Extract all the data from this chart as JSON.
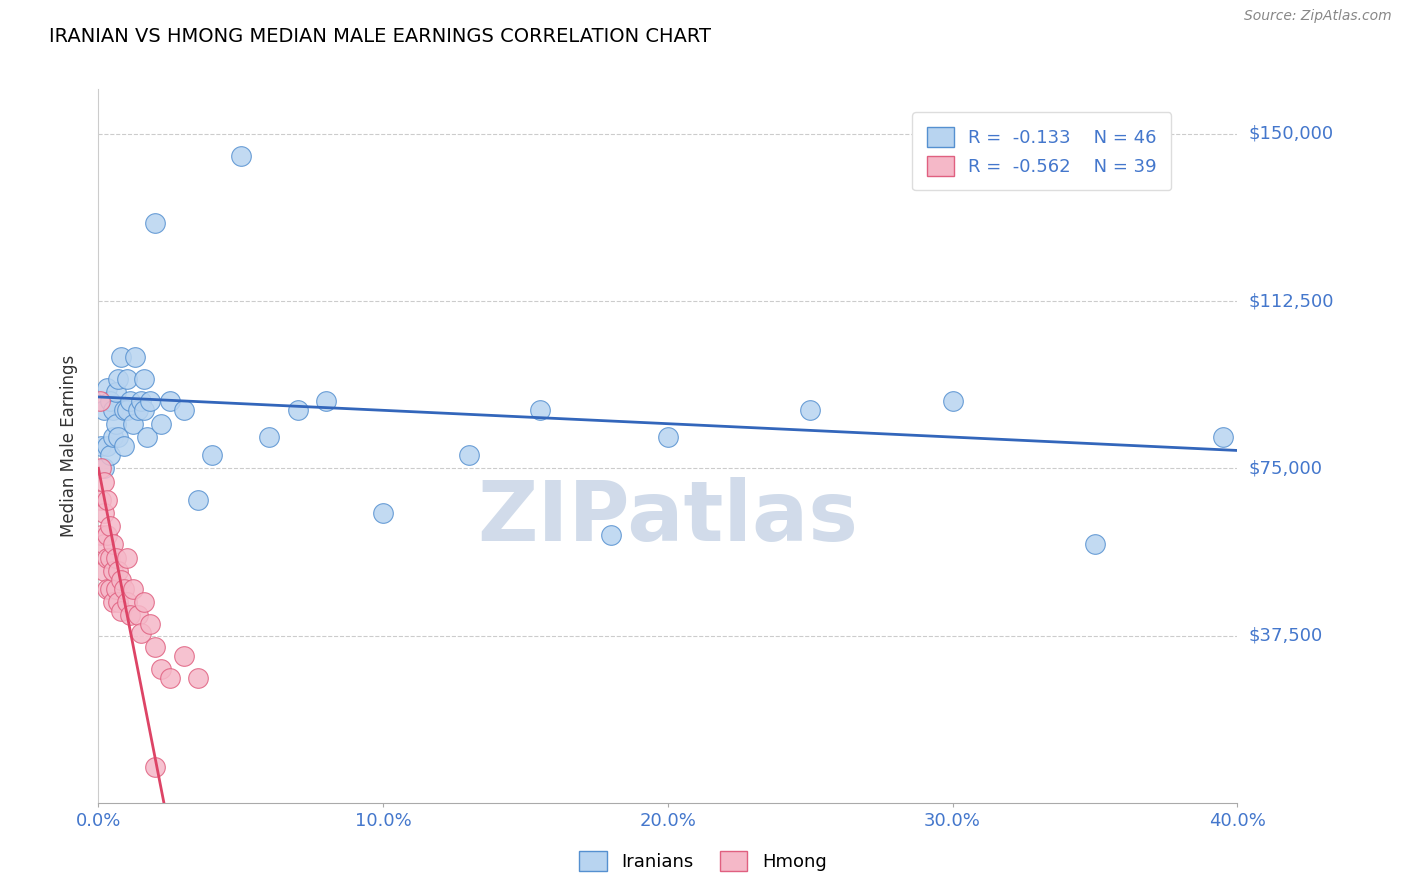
{
  "title": "IRANIAN VS HMONG MEDIAN MALE EARNINGS CORRELATION CHART",
  "source_text": "Source: ZipAtlas.com",
  "ylabel": "Median Male Earnings",
  "xlim": [
    0.0,
    0.4
  ],
  "ylim": [
    0,
    160000
  ],
  "ytick_vals": [
    37500,
    75000,
    112500,
    150000
  ],
  "ytick_labels": [
    "$37,500",
    "$75,000",
    "$112,500",
    "$150,000"
  ],
  "xticks": [
    0.0,
    0.1,
    0.2,
    0.3,
    0.4
  ],
  "xtick_labels": [
    "0.0%",
    "10.0%",
    "20.0%",
    "30.0%",
    "40.0%"
  ],
  "legend_r_iranian": "-0.133",
  "legend_n_iranian": "46",
  "legend_r_hmong": "-0.562",
  "legend_n_hmong": "39",
  "iranian_color": "#b8d4f0",
  "hmong_color": "#f5b8c8",
  "iranian_edge_color": "#5590d0",
  "hmong_edge_color": "#e06080",
  "iranian_line_color": "#3366bb",
  "hmong_line_color": "#dd4466",
  "tick_label_color": "#4477cc",
  "grid_color": "#cccccc",
  "background_color": "#ffffff",
  "watermark_color": "#ccd8e8",
  "iranians_x": [
    0.001,
    0.002,
    0.002,
    0.003,
    0.003,
    0.004,
    0.004,
    0.005,
    0.005,
    0.006,
    0.006,
    0.007,
    0.007,
    0.008,
    0.009,
    0.009,
    0.01,
    0.01,
    0.011,
    0.012,
    0.013,
    0.014,
    0.015,
    0.016,
    0.016,
    0.017,
    0.018,
    0.02,
    0.022,
    0.025,
    0.03,
    0.035,
    0.04,
    0.05,
    0.06,
    0.07,
    0.08,
    0.1,
    0.13,
    0.155,
    0.18,
    0.2,
    0.25,
    0.3,
    0.35,
    0.395
  ],
  "iranians_y": [
    80000,
    88000,
    75000,
    93000,
    80000,
    90000,
    78000,
    88000,
    82000,
    92000,
    85000,
    95000,
    82000,
    100000,
    88000,
    80000,
    95000,
    88000,
    90000,
    85000,
    100000,
    88000,
    90000,
    95000,
    88000,
    82000,
    90000,
    130000,
    85000,
    90000,
    88000,
    68000,
    78000,
    145000,
    82000,
    88000,
    90000,
    65000,
    78000,
    88000,
    60000,
    82000,
    88000,
    90000,
    58000,
    82000
  ],
  "hmong_x": [
    0.0005,
    0.001,
    0.001,
    0.001,
    0.002,
    0.002,
    0.002,
    0.002,
    0.003,
    0.003,
    0.003,
    0.003,
    0.004,
    0.004,
    0.004,
    0.005,
    0.005,
    0.005,
    0.006,
    0.006,
    0.007,
    0.007,
    0.008,
    0.008,
    0.009,
    0.01,
    0.01,
    0.011,
    0.012,
    0.014,
    0.015,
    0.016,
    0.018,
    0.02,
    0.022,
    0.025,
    0.03,
    0.035,
    0.02
  ],
  "hmong_y": [
    90000,
    75000,
    68000,
    60000,
    72000,
    65000,
    58000,
    52000,
    68000,
    60000,
    55000,
    48000,
    62000,
    55000,
    48000,
    58000,
    52000,
    45000,
    55000,
    48000,
    52000,
    45000,
    50000,
    43000,
    48000,
    55000,
    45000,
    42000,
    48000,
    42000,
    38000,
    45000,
    40000,
    35000,
    30000,
    28000,
    33000,
    28000,
    8000
  ]
}
